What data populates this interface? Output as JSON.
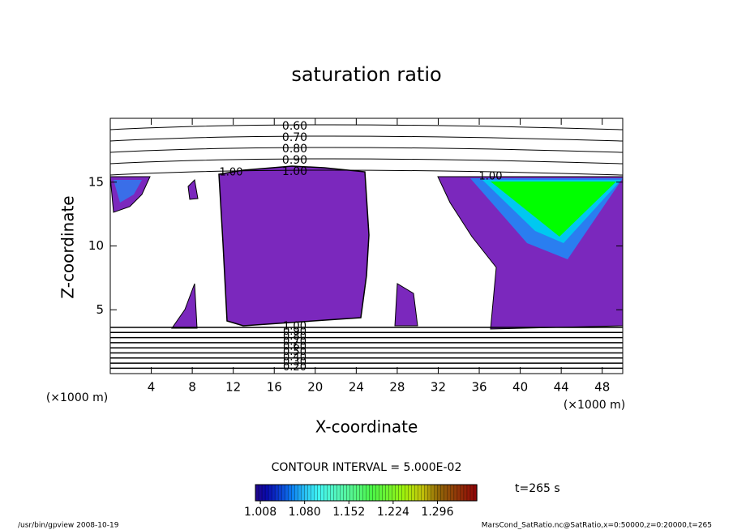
{
  "chart_data": {
    "type": "contour",
    "title": "saturation ratio",
    "x_label": "X-coordinate",
    "y_label": "Z-coordinate",
    "x_unit_label": "(×1000 m)",
    "xlim": [
      0,
      50
    ],
    "xticks": [
      4,
      8,
      12,
      16,
      20,
      24,
      28,
      32,
      36,
      40,
      44,
      48
    ],
    "ylim": [
      0,
      20
    ],
    "yticks": [
      5,
      10,
      15
    ],
    "contour_levels_top": [
      {
        "value": 0.6,
        "label": "0.60"
      },
      {
        "value": 0.7,
        "label": "0.70"
      },
      {
        "value": 0.8,
        "label": "0.80"
      },
      {
        "value": 0.9,
        "label": "0.90"
      },
      {
        "value": 1.0,
        "label": "1.00"
      }
    ],
    "contour_levels_bottom": [
      {
        "value": 1.0,
        "label": "1.00"
      },
      {
        "value": 0.9,
        "label": "0.90"
      },
      {
        "value": 0.8,
        "label": "0.80"
      },
      {
        "value": 0.7,
        "label": "0.70"
      },
      {
        "value": 0.6,
        "label": "0.60"
      },
      {
        "value": 0.5,
        "label": "0.50"
      },
      {
        "value": 0.4,
        "label": "0.40"
      },
      {
        "value": 0.3,
        "label": "0.30"
      },
      {
        "value": 0.2,
        "label": "0.20"
      }
    ],
    "contour_interval": "CONTOUR INTERVAL = 5.000E-02",
    "colorbar_lim": [
      1.0,
      1.36
    ],
    "colorbar_ticks": [
      1.008,
      {
        "value": 1.08,
        "label": "1.080"
      },
      1.152,
      1.224,
      1.296
    ],
    "time_label": "t=265 s",
    "footer_left": "/usr/bin/gpview  2008-10-19",
    "footer_right": "MarsCond_SatRatio.nc@SatRatio,x=0:50000,z=0:20000,t=265"
  }
}
